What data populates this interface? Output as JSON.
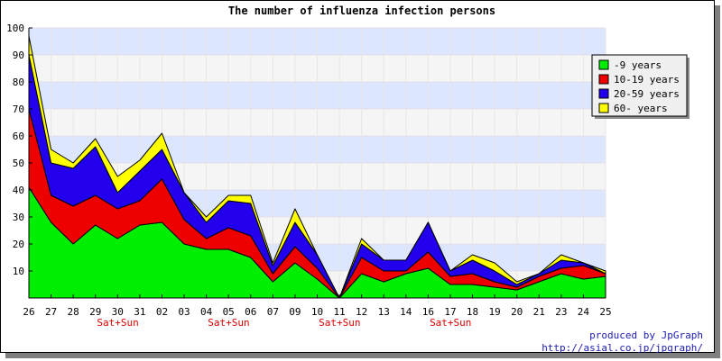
{
  "chart_data": {
    "type": "area",
    "title": "The number of influenza infection persons",
    "stacked": true,
    "categories": [
      "26",
      "27",
      "28",
      "29",
      "30",
      "31",
      "02",
      "03",
      "04",
      "05",
      "06",
      "07",
      "09",
      "10",
      "11",
      "12",
      "13",
      "14",
      "16",
      "17",
      "18",
      "19",
      "20",
      "21",
      "23",
      "24",
      "25"
    ],
    "weekend_labels": [
      {
        "after_index": 4,
        "text": "Sat+Sun"
      },
      {
        "after_index": 9,
        "text": "Sat+Sun"
      },
      {
        "after_index": 14,
        "text": "Sat+Sun"
      },
      {
        "after_index": 19,
        "text": "Sat+Sun"
      }
    ],
    "ylim": [
      0,
      100
    ],
    "yticks": [
      10,
      20,
      30,
      40,
      50,
      60,
      70,
      80,
      90,
      100
    ],
    "grid": true,
    "legend_position": "top-right",
    "series": [
      {
        "name": "-9 years",
        "color": "#00ee00",
        "values": [
          41,
          28,
          20,
          27,
          22,
          27,
          28,
          20,
          18,
          18,
          15,
          6,
          13,
          7,
          0,
          9,
          6,
          9,
          11,
          5,
          5,
          4,
          3,
          6,
          9,
          7,
          8
        ]
      },
      {
        "name": "10-19 years",
        "color": "#ee0000",
        "values": [
          29,
          10,
          14,
          11,
          11,
          9,
          16,
          9,
          4,
          8,
          8,
          3,
          6,
          4,
          0,
          6,
          4,
          1,
          6,
          3,
          4,
          2,
          1,
          2,
          2,
          5,
          1
        ]
      },
      {
        "name": "20-59 years",
        "color": "#2200ee",
        "values": [
          20,
          12,
          14,
          18,
          6,
          11,
          11,
          10,
          6,
          10,
          12,
          3,
          9,
          5,
          0,
          5,
          4,
          4,
          11,
          2,
          5,
          4,
          1,
          1,
          3,
          1,
          0
        ]
      },
      {
        "name": "60- years",
        "color": "#ffff00",
        "values": [
          7,
          5,
          2,
          3,
          6,
          4,
          6,
          0,
          2,
          2,
          3,
          1,
          5,
          0,
          0,
          2,
          0,
          0,
          0,
          0,
          2,
          3,
          1,
          0,
          2,
          0,
          1
        ]
      }
    ]
  },
  "credits": {
    "line1": "produced by JpGraph",
    "line2": "http://asial.co.jp/jpgraph/"
  }
}
